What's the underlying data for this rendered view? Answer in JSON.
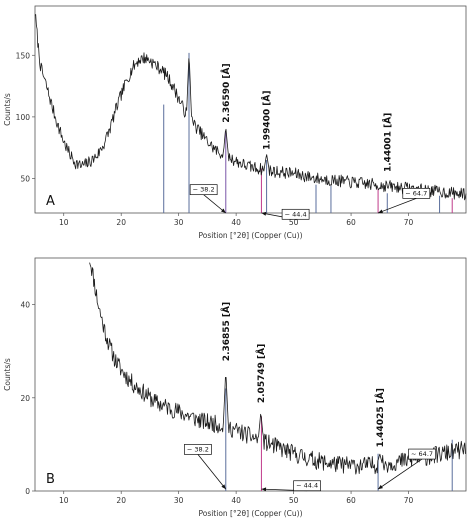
{
  "chart_data": [
    {
      "type": "line",
      "panel_label": "A",
      "xlabel": "Position [°2θ] (Copper (Cu))",
      "ylabel": "Counts/s",
      "xlim": [
        5,
        80
      ],
      "ylim": [
        22,
        190
      ],
      "xticks": [
        10,
        20,
        30,
        40,
        50,
        60,
        70
      ],
      "yticks": [
        50,
        100,
        150
      ],
      "profile": [
        [
          5,
          185
        ],
        [
          5.5,
          160
        ],
        [
          6,
          140
        ],
        [
          7,
          125
        ],
        [
          8,
          108
        ],
        [
          9,
          93
        ],
        [
          10,
          80
        ],
        [
          11,
          70
        ],
        [
          12,
          63
        ],
        [
          13,
          60
        ],
        [
          14,
          62
        ],
        [
          15,
          65
        ],
        [
          16,
          70
        ],
        [
          17,
          78
        ],
        [
          18,
          90
        ],
        [
          19,
          105
        ],
        [
          20,
          118
        ],
        [
          21,
          130
        ],
        [
          22,
          140
        ],
        [
          23,
          146
        ],
        [
          24,
          148
        ],
        [
          25,
          146
        ],
        [
          26,
          142
        ],
        [
          27,
          138
        ],
        [
          28,
          133
        ],
        [
          29,
          125
        ],
        [
          30,
          115
        ],
        [
          31,
          105
        ],
        [
          32,
          98
        ],
        [
          33,
          92
        ],
        [
          34,
          86
        ],
        [
          35,
          80
        ],
        [
          36,
          75
        ],
        [
          37,
          71
        ],
        [
          38,
          69
        ],
        [
          39,
          67
        ],
        [
          40,
          64
        ],
        [
          42,
          60
        ],
        [
          44,
          58
        ],
        [
          46,
          56
        ],
        [
          48,
          55
        ],
        [
          50,
          54
        ],
        [
          52,
          52
        ],
        [
          54,
          50
        ],
        [
          56,
          49
        ],
        [
          58,
          48
        ],
        [
          60,
          47
        ],
        [
          62,
          46
        ],
        [
          64,
          45
        ],
        [
          66,
          44
        ],
        [
          68,
          43
        ],
        [
          70,
          42
        ],
        [
          72,
          41
        ],
        [
          74,
          40
        ],
        [
          76,
          39
        ],
        [
          78,
          38
        ],
        [
          80,
          37
        ]
      ],
      "noise": 5,
      "seed": 7,
      "spikes": [
        [
          31.8,
          152
        ],
        [
          45.3,
          70
        ],
        [
          38.2,
          92
        ],
        [
          27.4,
          110
        ]
      ],
      "sticks": [
        {
          "x": 27.4,
          "y": 110,
          "color": "#5a6e9c"
        },
        {
          "x": 31.8,
          "y": 152,
          "color": "#5a6e9c"
        },
        {
          "x": 38.2,
          "y": 88,
          "color": "#7a55a8"
        },
        {
          "x": 44.4,
          "y": 58,
          "color": "#c03a8a"
        },
        {
          "x": 45.3,
          "y": 65,
          "color": "#5a6e9c"
        },
        {
          "x": 53.9,
          "y": 45,
          "color": "#5a6e9c"
        },
        {
          "x": 56.5,
          "y": 44,
          "color": "#5a6e9c"
        },
        {
          "x": 64.7,
          "y": 42,
          "color": "#c03a8a"
        },
        {
          "x": 66.3,
          "y": 38,
          "color": "#5a6e9c"
        },
        {
          "x": 75.4,
          "y": 36,
          "color": "#5a6e9c"
        },
        {
          "x": 77.6,
          "y": 34,
          "color": "#c03a8a"
        }
      ],
      "peak_labels": [
        {
          "x": 38.2,
          "y": 92,
          "text": "2.36590 [Å]"
        },
        {
          "x": 45.3,
          "y": 70,
          "text": "1.99400 [Å]"
        },
        {
          "x": 66.3,
          "y": 52,
          "text": "1.44001 [Å]"
        }
      ],
      "annotations": [
        {
          "text": "~ 38.2",
          "box": [
            32,
            45
          ],
          "arrow_to": [
            38.2,
            22
          ]
        },
        {
          "text": "~ 44.4",
          "box": [
            48,
            25
          ],
          "arrow_to": [
            44.4,
            22
          ]
        },
        {
          "text": "~ 64.7",
          "box": [
            69,
            42
          ],
          "arrow_to": [
            64.7,
            22
          ]
        }
      ]
    },
    {
      "type": "line",
      "panel_label": "B",
      "xlabel": "Position [°2θ] (Copper (Cu))",
      "ylabel": "Counts/s",
      "xlim": [
        5,
        80
      ],
      "ylim": [
        0,
        50
      ],
      "xticks": [
        10,
        20,
        30,
        40,
        50,
        60,
        70
      ],
      "yticks": [
        0,
        20,
        40
      ],
      "profile": [
        [
          14.5,
          50
        ],
        [
          15,
          47
        ],
        [
          16,
          40
        ],
        [
          17,
          35
        ],
        [
          18,
          31
        ],
        [
          19,
          28
        ],
        [
          20,
          26
        ],
        [
          22,
          23
        ],
        [
          24,
          21
        ],
        [
          26,
          19
        ],
        [
          28,
          18
        ],
        [
          30,
          17
        ],
        [
          32,
          16
        ],
        [
          34,
          15
        ],
        [
          36,
          14.5
        ],
        [
          38,
          14
        ],
        [
          40,
          13
        ],
        [
          42,
          12
        ],
        [
          44,
          11
        ],
        [
          46,
          10
        ],
        [
          48,
          9
        ],
        [
          50,
          8
        ],
        [
          52,
          7.2
        ],
        [
          54,
          6.5
        ],
        [
          56,
          6
        ],
        [
          58,
          5.7
        ],
        [
          60,
          5.5
        ],
        [
          62,
          5.5
        ],
        [
          64,
          5.6
        ],
        [
          66,
          5.8
        ],
        [
          68,
          6.2
        ],
        [
          70,
          6.6
        ],
        [
          72,
          7
        ],
        [
          74,
          7.5
        ],
        [
          76,
          8
        ],
        [
          78,
          8.5
        ],
        [
          80,
          9
        ]
      ],
      "noise": 1.9,
      "seed": 11,
      "spikes": [
        [
          38.2,
          26
        ],
        [
          44.3,
          17
        ],
        [
          65,
          8
        ]
      ],
      "sticks": [
        {
          "x": 38.2,
          "y": 22,
          "color": "#5a6e9c"
        },
        {
          "x": 44.4,
          "y": 16,
          "color": "#c03a8a"
        },
        {
          "x": 64.7,
          "y": 8,
          "color": "#5a6e9c"
        },
        {
          "x": 77.6,
          "y": 11,
          "color": "#5a6e9c"
        }
      ],
      "peak_labels": [
        {
          "x": 38.2,
          "y": 27,
          "text": "2.36855 [Å]"
        },
        {
          "x": 44.3,
          "y": 18,
          "text": "2.05749 [Å]"
        },
        {
          "x": 65,
          "y": 8.5,
          "text": "1.44025 [Å]"
        }
      ],
      "annotations": [
        {
          "text": "~ 38.2",
          "box": [
            31,
            10
          ],
          "arrow_to": [
            38.2,
            0.4
          ]
        },
        {
          "text": "~ 44.4",
          "box": [
            50,
            2.2
          ],
          "arrow_to": [
            44.4,
            0.4
          ]
        },
        {
          "text": "~ 64.7",
          "box": [
            70,
            9
          ],
          "arrow_to": [
            64.7,
            0.4
          ]
        }
      ]
    }
  ]
}
